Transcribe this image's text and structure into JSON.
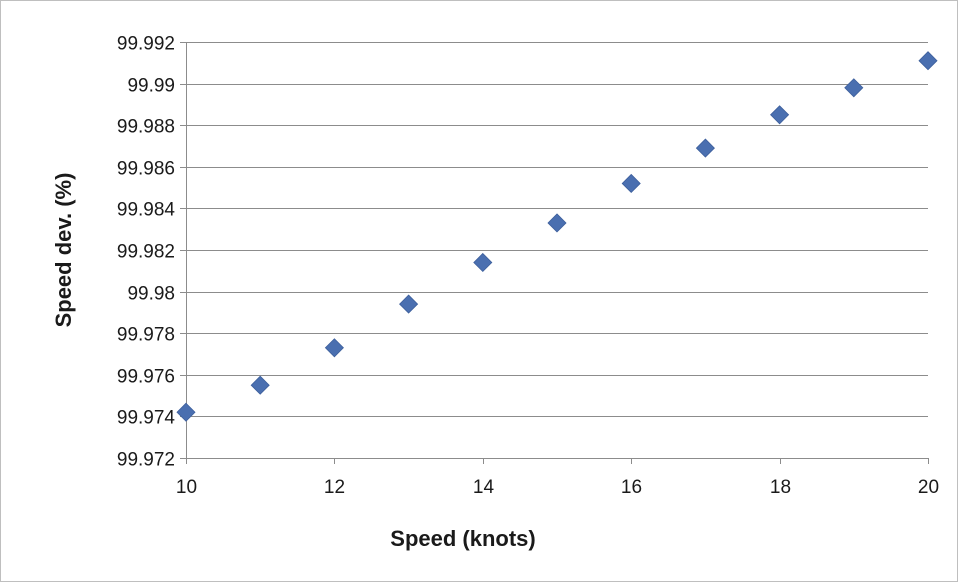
{
  "chart_data": {
    "type": "scatter",
    "title": "",
    "xlabel": "Speed (knots)",
    "ylabel": "Speed dev. (%)",
    "xlim": [
      10,
      20
    ],
    "ylim": [
      99.972,
      99.992
    ],
    "grid": "horizontal",
    "x_ticks": [
      "10",
      "12",
      "14",
      "16",
      "18",
      "20"
    ],
    "x_tick_values": [
      10,
      12,
      14,
      16,
      18,
      20
    ],
    "y_ticks": [
      "99.972",
      "99.974",
      "99.976",
      "99.978",
      "99.98",
      "99.982",
      "99.984",
      "99.986",
      "99.988",
      "99.99",
      "99.992"
    ],
    "y_tick_values": [
      99.972,
      99.974,
      99.976,
      99.978,
      99.98,
      99.982,
      99.984,
      99.986,
      99.988,
      99.99,
      99.992
    ],
    "marker": "diamond",
    "series": [
      {
        "x": [
          10,
          11,
          12,
          13,
          14,
          15,
          16,
          17,
          18,
          19,
          20
        ],
        "y": [
          99.9742,
          99.9755,
          99.9773,
          99.9794,
          99.9814,
          99.9833,
          99.9852,
          99.9869,
          99.9885,
          99.9898,
          99.9911
        ],
        "color": "#4a6fb0"
      }
    ]
  },
  "colors": {
    "marker": "#4a6fb0",
    "gridline": "#8c8c8c",
    "axis": "#8c8c8c",
    "text": "#1a1a1a",
    "frame": "#bfbfbf"
  }
}
